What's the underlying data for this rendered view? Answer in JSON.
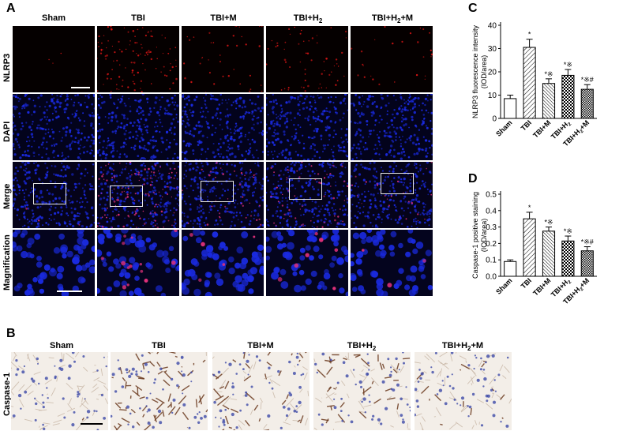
{
  "panel_labels": {
    "a": "A",
    "b": "B",
    "c": "C",
    "d": "D"
  },
  "groups": [
    "Sham",
    "TBI",
    "TBI+M",
    "TBI+H2",
    "TBI+H2+M"
  ],
  "group_labels": [
    {
      "main": "Sham",
      "sub": "",
      "tail": ""
    },
    {
      "main": "TBI",
      "sub": "",
      "tail": ""
    },
    {
      "main": "TBI+M",
      "sub": "",
      "tail": ""
    },
    {
      "main": "TBI+H",
      "sub": "2",
      "tail": ""
    },
    {
      "main": "TBI+H",
      "sub": "2",
      "tail": "+M"
    }
  ],
  "panel_a": {
    "rows": [
      "NLRP3",
      "DAPI",
      "Merge",
      "Magnification"
    ]
  },
  "panel_b": {
    "row_label": "Caspase-1"
  },
  "colors": {
    "nlrp3_signal": "#d41414",
    "dapi_signal": "#1a2ae0",
    "ihc_brown": "#6b3a1f",
    "ihc_blue": "#3d4aa8",
    "hatch": "#000000"
  },
  "chart_data": [
    {
      "type": "bar",
      "panel": "C",
      "categories": [
        "Sham",
        "TBI",
        "TBI+M",
        "TBI+H2",
        "TBI+H2+M"
      ],
      "values": [
        8.5,
        30.5,
        15.0,
        18.5,
        12.5
      ],
      "errors": [
        1.5,
        3.5,
        2.0,
        2.5,
        2.0
      ],
      "annotations": [
        "",
        "*",
        "*※",
        "*※",
        "*※#"
      ],
      "patterns": [
        "blank",
        "diagonal",
        "diagonal-dense",
        "checker",
        "checker-dense"
      ],
      "ylabel_line1": "NLRP3 fluorescence intensity",
      "ylabel_line2": "(IOD/area)",
      "ylim": [
        0,
        40
      ],
      "yticks": [
        "0",
        "10",
        "20",
        "30",
        "40"
      ]
    },
    {
      "type": "bar",
      "panel": "D",
      "categories": [
        "Sham",
        "TBI",
        "TBI+M",
        "TBI+H2",
        "TBI+H2+M"
      ],
      "values": [
        0.09,
        0.35,
        0.275,
        0.215,
        0.155
      ],
      "errors": [
        0.01,
        0.04,
        0.025,
        0.03,
        0.025
      ],
      "annotations": [
        "",
        "*",
        "*※",
        "*※",
        "*※#"
      ],
      "patterns": [
        "blank",
        "diagonal",
        "diagonal-dense",
        "checker",
        "checker-dense"
      ],
      "ylabel_line1": "Caspase-1 positive staining",
      "ylabel_line2": "(IOD/area)",
      "ylim": [
        0,
        0.5
      ],
      "yticks": [
        "0.0",
        "0.1",
        "0.2",
        "0.3",
        "0.4",
        "0.5"
      ]
    }
  ]
}
